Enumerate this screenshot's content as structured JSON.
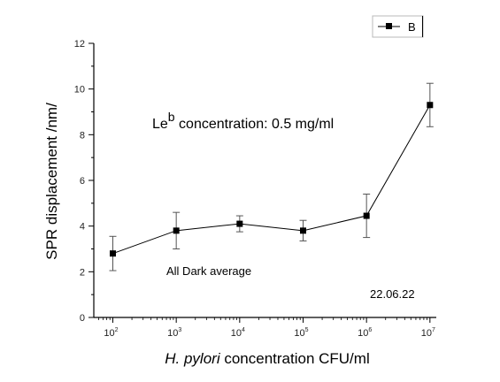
{
  "chart_data": {
    "type": "scatter",
    "title": "",
    "xlabel_italic": "H. pylori",
    "xlabel_rest": " concentration CFU/ml",
    "ylabel": "SPR displacement /nm/",
    "x_scale": "log10",
    "x_ticks": [
      2,
      3,
      4,
      5,
      6,
      7
    ],
    "x_tick_base": "10",
    "x_tick_exponents": [
      "2",
      "3",
      "4",
      "5",
      "6",
      "7"
    ],
    "y_ticks": [
      "0",
      "2",
      "4",
      "6",
      "8",
      "10",
      "12"
    ],
    "ylim": [
      0,
      12
    ],
    "xlim": [
      1.7,
      7.1
    ],
    "grid": false,
    "legend_position": "top-right",
    "series": [
      {
        "name": "B",
        "color": "#000000",
        "marker": "square",
        "line": "solid-with-points",
        "points": [
          {
            "x": 100,
            "y": 2.8,
            "err": 0.75
          },
          {
            "x": 1000,
            "y": 3.8,
            "err": 0.8
          },
          {
            "x": 10000,
            "y": 4.1,
            "err": 0.35
          },
          {
            "x": 100000,
            "y": 3.8,
            "err": 0.45
          },
          {
            "x": 1000000,
            "y": 4.45,
            "err": 0.95
          },
          {
            "x": 10000000,
            "y": 9.3,
            "err": 0.95
          }
        ]
      }
    ],
    "annotations": {
      "concentration_prefix": "Le",
      "concentration_sup": "b",
      "concentration_rest": " concentration: 0.5 mg/ml",
      "average_note": "All Dark average",
      "date_note": "22.06.22"
    }
  }
}
